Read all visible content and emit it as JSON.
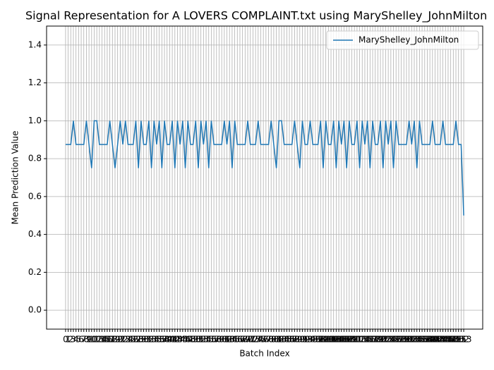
{
  "chart_data": {
    "type": "line",
    "title": "Signal Representation for A LOVERS COMPLAINT.txt using MaryShelley_JohnMilton",
    "xlabel": "Batch Index",
    "ylabel": "Mean Prediction Value",
    "x": [
      0,
      1,
      2,
      3,
      4,
      5,
      6,
      7,
      8,
      9,
      10,
      11,
      12,
      13,
      14,
      15,
      16,
      17,
      18,
      19,
      20,
      21,
      22,
      23,
      24,
      25,
      26,
      27,
      28,
      29,
      30,
      31,
      32,
      33,
      34,
      35,
      36,
      37,
      38,
      39,
      40,
      41,
      42,
      43,
      44,
      45,
      46,
      47,
      48,
      49,
      50,
      51,
      52,
      53,
      54,
      55,
      56,
      57,
      58,
      59,
      60,
      61,
      62,
      63,
      64,
      65,
      66,
      67,
      68,
      69,
      70,
      71,
      72,
      73,
      74,
      75,
      76,
      77,
      78,
      79,
      80,
      81,
      82,
      83,
      84,
      85,
      86,
      87,
      88,
      89,
      90,
      91,
      92,
      93,
      94,
      95,
      96,
      97,
      98,
      99,
      100,
      101,
      102,
      103,
      104,
      105,
      106,
      107,
      108,
      109,
      110,
      111,
      112,
      113,
      114,
      115,
      116,
      117,
      118,
      119,
      120,
      121,
      122,
      123,
      124,
      125,
      126,
      127,
      128,
      129,
      130,
      131,
      132,
      133,
      134,
      135,
      136,
      137,
      138,
      139,
      140,
      141,
      142,
      143,
      144,
      145,
      146,
      147,
      148,
      149,
      150,
      151,
      152,
      153
    ],
    "series": [
      {
        "name": "MaryShelley_JohnMilton",
        "color": "#1f77b4",
        "values": [
          0.875,
          0.875,
          0.875,
          1,
          0.875,
          0.875,
          0.875,
          0.875,
          1,
          0.875,
          0.75,
          1,
          1,
          0.875,
          0.875,
          0.875,
          0.875,
          1,
          0.875,
          0.75,
          0.875,
          1,
          0.875,
          1,
          0.875,
          0.875,
          0.875,
          1,
          0.75,
          1,
          0.875,
          0.875,
          1,
          0.75,
          1,
          0.875,
          1,
          0.75,
          1,
          0.875,
          0.875,
          1,
          0.75,
          1,
          0.875,
          1,
          0.75,
          1,
          0.875,
          0.875,
          1,
          0.75,
          1,
          0.875,
          1,
          0.75,
          1,
          0.875,
          0.875,
          0.875,
          0.875,
          1,
          0.875,
          1,
          0.75,
          1,
          0.875,
          0.875,
          0.875,
          0.875,
          1,
          0.875,
          0.875,
          0.875,
          1,
          0.875,
          0.875,
          0.875,
          0.875,
          1,
          0.875,
          0.75,
          1,
          1,
          0.875,
          0.875,
          0.875,
          0.875,
          1,
          0.875,
          0.75,
          1,
          0.875,
          0.875,
          1,
          0.875,
          0.875,
          0.875,
          1,
          0.75,
          1,
          0.875,
          0.875,
          1,
          0.75,
          1,
          0.875,
          1,
          0.75,
          1,
          0.875,
          0.875,
          1,
          0.75,
          1,
          0.875,
          1,
          0.75,
          1,
          0.875,
          0.875,
          1,
          0.75,
          1,
          0.875,
          1,
          0.75,
          1,
          0.875,
          0.875,
          0.875,
          0.875,
          1,
          0.875,
          1,
          0.75,
          1,
          0.875,
          0.875,
          0.875,
          0.875,
          1,
          0.875,
          0.875,
          0.875,
          1,
          0.875,
          0.875,
          0.875,
          0.875,
          1,
          0.875,
          0.875,
          0.5
        ]
      }
    ],
    "xlim": [
      -7.3,
      160.3
    ],
    "xticks": [
      0,
      1,
      2,
      3,
      4,
      5,
      6,
      7,
      8,
      9,
      10,
      11,
      12,
      13,
      14,
      15,
      16,
      17,
      18,
      19,
      20,
      21,
      22,
      23,
      24,
      25,
      26,
      27,
      28,
      29,
      30,
      31,
      32,
      33,
      34,
      35,
      36,
      37,
      38,
      39,
      40,
      41,
      42,
      43,
      44,
      45,
      46,
      47,
      48,
      49,
      50,
      51,
      52,
      53,
      54,
      55,
      56,
      57,
      58,
      59,
      60,
      61,
      62,
      63,
      64,
      65,
      66,
      67,
      68,
      69,
      70,
      71,
      72,
      73,
      74,
      75,
      76,
      77,
      78,
      79,
      80,
      81,
      82,
      83,
      84,
      85,
      86,
      87,
      88,
      89,
      90,
      91,
      92,
      93,
      94,
      95,
      96,
      97,
      98,
      99,
      100,
      101,
      102,
      103,
      104,
      105,
      106,
      107,
      108,
      109,
      110,
      111,
      112,
      113,
      114,
      115,
      116,
      117,
      118,
      119,
      120,
      121,
      122,
      123,
      124,
      125,
      126,
      127,
      128,
      129,
      130,
      131,
      132,
      133,
      134,
      135,
      136,
      137,
      138,
      139,
      140,
      141,
      142,
      143,
      144,
      145,
      146,
      147,
      148,
      149,
      150,
      151,
      152,
      153
    ],
    "ylim": [
      -0.1,
      1.5
    ],
    "yticks": [
      {
        "value": 0,
        "label": "0.0"
      },
      {
        "value": 0.2,
        "label": "0.2"
      },
      {
        "value": 0.4,
        "label": "0.4"
      },
      {
        "value": 0.6,
        "label": "0.6"
      },
      {
        "value": 0.8,
        "label": "0.8"
      },
      {
        "value": 1,
        "label": "1.0"
      },
      {
        "value": 1.2,
        "label": "1.2"
      },
      {
        "value": 1.4,
        "label": "1.4"
      }
    ],
    "grid": true,
    "legend": "upper right"
  }
}
